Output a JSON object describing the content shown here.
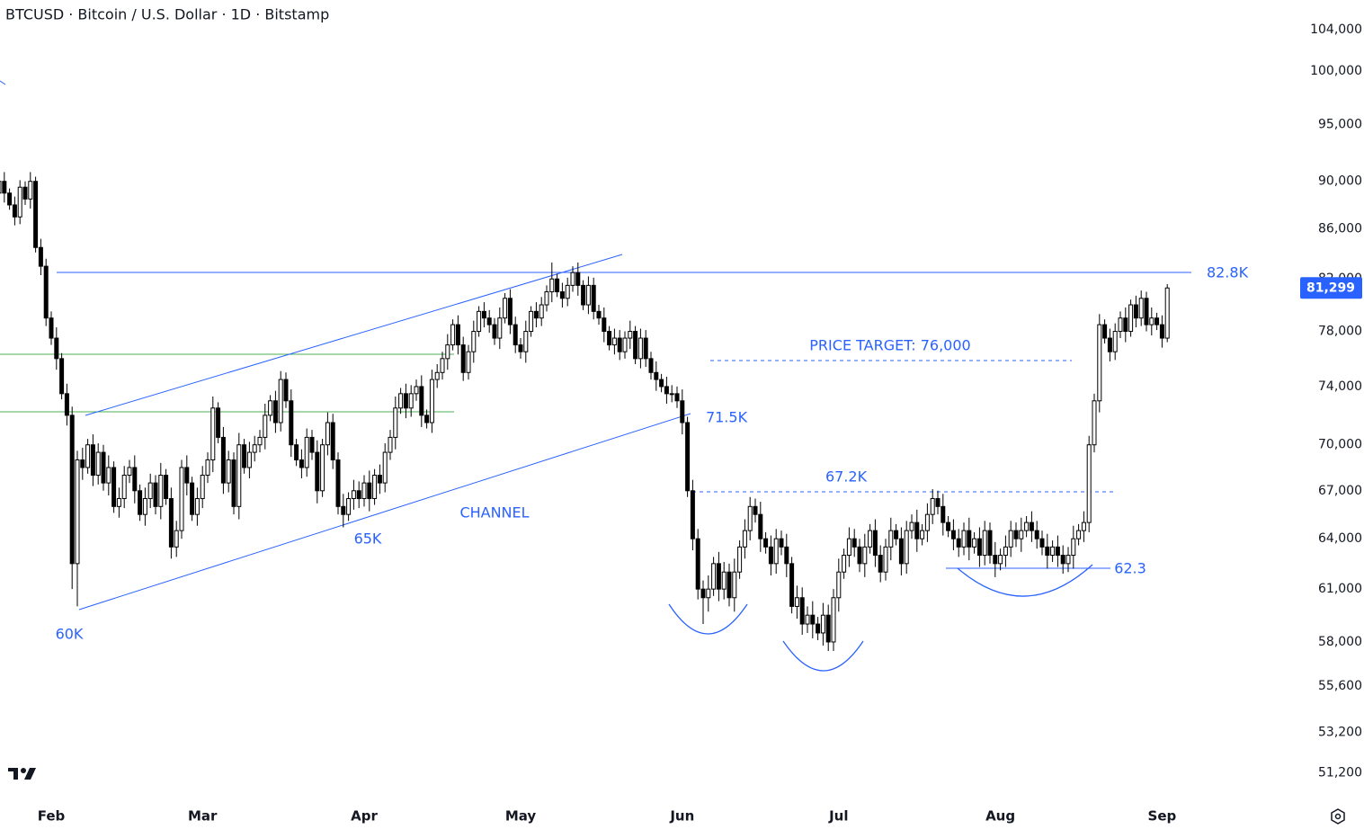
{
  "chart_data": {
    "type": "candlestick",
    "title": "BTCUSD · Bitcoin / U.S. Dollar · 1D · Bitstamp",
    "log_scale": true,
    "grid": false,
    "up_color": "#ffffff",
    "down_color": "#000000",
    "outline_color": "#000000",
    "ylim": [
      50000,
      107000
    ],
    "yticks": [
      {
        "value": 51200,
        "label": "51,200"
      },
      {
        "value": 53200,
        "label": "53,200"
      },
      {
        "value": 55600,
        "label": "55,600"
      },
      {
        "value": 58000,
        "label": "58,000"
      },
      {
        "value": 61000,
        "label": "61,000"
      },
      {
        "value": 64000,
        "label": "64,000"
      },
      {
        "value": 67000,
        "label": "67,000"
      },
      {
        "value": 70000,
        "label": "70,000"
      },
      {
        "value": 74000,
        "label": "74,000"
      },
      {
        "value": 78000,
        "label": "78,000"
      },
      {
        "value": 82000,
        "label": "82,000"
      },
      {
        "value": 86000,
        "label": "86,000"
      },
      {
        "value": 90000,
        "label": "90,000"
      },
      {
        "value": 95000,
        "label": "95,000"
      },
      {
        "value": 100000,
        "label": "100,000"
      },
      {
        "value": 104000,
        "label": "104,000"
      }
    ],
    "last_price": {
      "value": 81299,
      "label": "81,299",
      "color": "#2962ff"
    },
    "annotations": [
      "82.8K",
      "PRICE TARGET: 76,000",
      "71.5K",
      "67.2K",
      "CHANNEL",
      "65K",
      "60K",
      "62.3"
    ],
    "categories": [
      null,
      null,
      null,
      null,
      null,
      null,
      null,
      null,
      null,
      null,
      "Feb",
      null,
      null,
      null,
      null,
      null,
      null,
      null,
      null,
      null,
      null,
      null,
      null,
      null,
      null,
      null,
      null,
      null,
      null,
      null,
      null,
      null,
      null,
      null,
      null,
      null,
      null,
      null,
      null,
      "Mar",
      null,
      null,
      null,
      null,
      null,
      null,
      null,
      null,
      null,
      null,
      null,
      null,
      null,
      null,
      null,
      null,
      null,
      null,
      null,
      null,
      null,
      null,
      null,
      null,
      null,
      null,
      null,
      null,
      null,
      null,
      "Apr",
      null,
      null,
      null,
      null,
      null,
      null,
      null,
      null,
      null,
      null,
      null,
      null,
      null,
      null,
      null,
      null,
      null,
      null,
      null,
      null,
      null,
      null,
      null,
      null,
      null,
      null,
      null,
      null,
      null,
      "May",
      null,
      null,
      null,
      null,
      null,
      null,
      null,
      null,
      null,
      null,
      null,
      null,
      null,
      null,
      null,
      null,
      null,
      null,
      null,
      null,
      null,
      null,
      null,
      null,
      null,
      null,
      null,
      null,
      null,
      null,
      "Jun",
      null,
      null,
      null,
      null,
      null,
      null,
      null,
      null,
      null,
      null,
      null,
      null,
      null,
      null,
      null,
      null,
      null,
      null,
      null,
      null,
      null,
      null,
      null,
      null,
      null,
      null,
      null,
      null,
      null,
      "Jul",
      null,
      null,
      null,
      null,
      null,
      null,
      null,
      null,
      null,
      null,
      null,
      null,
      null,
      null,
      null,
      null,
      null,
      null,
      null,
      null,
      null,
      null,
      null,
      null,
      null,
      null,
      null,
      null,
      null,
      null,
      "Aug",
      null,
      null,
      null,
      null,
      null,
      null,
      null,
      null,
      null,
      null,
      null,
      null,
      null,
      null,
      null,
      null,
      null,
      null,
      null,
      null,
      null,
      null,
      null,
      null,
      null,
      null,
      null,
      null,
      null,
      null,
      "Sep",
      null
    ],
    "open": [
      89000,
      90000,
      89000,
      88000,
      87000,
      89500,
      88500,
      90000,
      84500,
      83000,
      79000,
      77500,
      76000,
      73500,
      72000,
      62500,
      69000,
      68500,
      70000,
      68000,
      69500,
      67500,
      68500,
      66000,
      66500,
      68000,
      68500,
      67000,
      65500,
      66500,
      67500,
      66000,
      68000,
      66500,
      63500,
      64500,
      68500,
      67500,
      65500,
      66500,
      68000,
      69000,
      72500,
      70500,
      67500,
      69000,
      66000,
      70000,
      68500,
      69500,
      70000,
      70500,
      72000,
      73000,
      71500,
      74500,
      73000,
      70000,
      69000,
      68500,
      70500,
      69500,
      67000,
      70000,
      71500,
      69000,
      66000,
      65500,
      66500,
      67000,
      66500,
      67500,
      66500,
      68000,
      67500,
      69500,
      70500,
      72500,
      73500,
      72500,
      73500,
      74000,
      72000,
      71500,
      74500,
      75000,
      76000,
      77000,
      78500,
      77000,
      75000,
      76500,
      78000,
      79500,
      79000,
      78500,
      77500,
      79000,
      80500,
      78500,
      77000,
      76500,
      78000,
      79500,
      79000,
      80000,
      81000,
      82000,
      81000,
      80500,
      81500,
      82500,
      81500,
      80000,
      81500,
      79500,
      79000,
      78000,
      77000,
      77500,
      76500,
      77500,
      78000,
      76000,
      77500,
      76000,
      75000,
      74500,
      74000,
      73500,
      73500,
      73000,
      71500,
      67000,
      64000,
      61000,
      60500,
      61000,
      62500,
      61000,
      62000,
      60500,
      62000,
      63500,
      64500,
      66000,
      65500,
      64000,
      63500,
      62500,
      64000,
      63500,
      62500,
      60000,
      60500,
      59000,
      59500,
      59000,
      58500,
      59500,
      58000,
      60500,
      62000,
      63000,
      64000,
      63500,
      62500,
      63500,
      64500,
      63000,
      62000,
      63500,
      64500,
      64000,
      62500,
      64500,
      65000,
      64000,
      64500,
      65500,
      66500,
      66000,
      65000,
      64500,
      64000,
      63500,
      64500,
      63500,
      64000,
      63000,
      64500,
      63000,
      62500,
      63000,
      63500,
      64500,
      64000,
      64500,
      65000,
      64500,
      64000,
      63500,
      63000,
      63500,
      63000,
      62500,
      63000,
      64000,
      64500,
      65000,
      70000,
      73000,
      78500,
      77500,
      76500,
      78000,
      79000,
      78000,
      80000,
      79000,
      80500,
      78500,
      79000,
      78500,
      77500
    ],
    "high": [
      90500,
      90800,
      89400,
      88700,
      90100,
      90000,
      90800,
      90400,
      85200,
      83600,
      79500,
      78300,
      76400,
      74200,
      72600,
      69600,
      69800,
      70400,
      70700,
      70100,
      70000,
      69300,
      68900,
      67200,
      68600,
      69000,
      69300,
      67400,
      67200,
      68100,
      68000,
      68800,
      68400,
      67200,
      65100,
      69000,
      69300,
      67900,
      67200,
      68600,
      69500,
      73300,
      72900,
      71200,
      69600,
      69500,
      70800,
      70400,
      70200,
      70600,
      71000,
      72800,
      73400,
      73700,
      75100,
      75000,
      73800,
      70400,
      69700,
      71100,
      71000,
      70300,
      70400,
      72200,
      72100,
      69500,
      66800,
      66900,
      67700,
      67600,
      68000,
      68300,
      68400,
      68700,
      70100,
      71000,
      73300,
      73900,
      74200,
      74100,
      74500,
      74800,
      72400,
      75200,
      75600,
      76500,
      77800,
      78900,
      79200,
      77600,
      77000,
      78800,
      79900,
      80200,
      79600,
      79000,
      79800,
      80900,
      81200,
      79100,
      77500,
      78800,
      79900,
      80200,
      80600,
      81500,
      83300,
      82400,
      81700,
      82100,
      83000,
      83300,
      81900,
      82200,
      82100,
      80000,
      79800,
      78400,
      78200,
      78100,
      78000,
      78800,
      78400,
      78200,
      78100,
      76500,
      75800,
      74900,
      74700,
      74100,
      74000,
      73800,
      71900,
      67700,
      64600,
      61500,
      61800,
      62900,
      63200,
      62600,
      62500,
      62800,
      63900,
      65200,
      66600,
      66500,
      66300,
      64400,
      64200,
      64600,
      64500,
      64300,
      62900,
      61200,
      61100,
      60000,
      60300,
      59400,
      60200,
      60100,
      61000,
      62800,
      63400,
      64700,
      64600,
      64000,
      64300,
      64900,
      65200,
      63600,
      64000,
      65300,
      64900,
      64700,
      65100,
      65500,
      65800,
      64900,
      66200,
      67100,
      67000,
      66800,
      65400,
      65200,
      64600,
      65000,
      65300,
      64400,
      64700,
      65100,
      65000,
      63800,
      63400,
      64200,
      65100,
      65000,
      65300,
      65400,
      65700,
      65100,
      64500,
      64300,
      63900,
      64200,
      63600,
      63500,
      64800,
      64900,
      65700,
      70600,
      73500,
      79300,
      78900,
      78200,
      78600,
      79500,
      79800,
      80400,
      80700,
      81100,
      81000,
      79800,
      79400,
      79200,
      81600
    ],
    "low": [
      88500,
      88200,
      87600,
      86300,
      86400,
      88000,
      87700,
      84100,
      82300,
      78400,
      77000,
      75200,
      73100,
      71300,
      61000,
      60000,
      67700,
      68100,
      67300,
      67400,
      67000,
      66700,
      65600,
      65300,
      65900,
      67500,
      66200,
      65100,
      64800,
      65900,
      65500,
      65200,
      66100,
      62800,
      62900,
      64000,
      66700,
      65100,
      64800,
      65900,
      67500,
      68200,
      70100,
      66800,
      66900,
      65500,
      65200,
      68100,
      67800,
      68900,
      69500,
      69700,
      71600,
      70800,
      70900,
      72500,
      69200,
      68600,
      67800,
      67900,
      69000,
      66200,
      66600,
      69300,
      68400,
      65500,
      64700,
      65100,
      65800,
      65900,
      66000,
      65700,
      66100,
      66800,
      66900,
      69000,
      69700,
      72100,
      71800,
      71900,
      73000,
      71200,
      71100,
      70800,
      73900,
      74500,
      75200,
      76600,
      76300,
      74400,
      74500,
      75700,
      77600,
      78300,
      77900,
      77000,
      76700,
      78600,
      77800,
      76400,
      76000,
      75700,
      77600,
      78300,
      78400,
      79500,
      80200,
      80600,
      79800,
      79900,
      81000,
      80700,
      79600,
      79300,
      78900,
      78500,
      77200,
      76600,
      76300,
      75900,
      76000,
      76700,
      75600,
      75300,
      75400,
      74500,
      73700,
      73600,
      72800,
      72900,
      72500,
      70700,
      66600,
      63300,
      60400,
      59000,
      59700,
      60600,
      60300,
      60400,
      60000,
      59700,
      61600,
      62800,
      63900,
      65000,
      63200,
      63100,
      61800,
      61900,
      63000,
      61700,
      59600,
      59300,
      58400,
      58500,
      58200,
      58100,
      57800,
      57500,
      57500,
      59700,
      61600,
      62300,
      62900,
      62000,
      61700,
      63100,
      62300,
      61400,
      61500,
      62700,
      63600,
      61800,
      61900,
      64000,
      63200,
      63600,
      63800,
      64900,
      65500,
      64200,
      64100,
      63300,
      62900,
      63000,
      62700,
      63100,
      62300,
      62400,
      62500,
      61700,
      62100,
      62300,
      62900,
      63500,
      63200,
      64100,
      63800,
      63400,
      63000,
      62200,
      62600,
      62300,
      61900,
      62000,
      62200,
      63600,
      63800,
      64400,
      69500,
      72200,
      77100,
      75800,
      75900,
      77500,
      77200,
      77600,
      78300,
      78400,
      78000,
      77700,
      78100,
      76800,
      77200
    ],
    "close": [
      90000,
      89000,
      88000,
      87000,
      89500,
      88500,
      90000,
      84500,
      83000,
      79000,
      77500,
      76000,
      73500,
      72000,
      62500,
      69000,
      68500,
      70000,
      68000,
      69500,
      67500,
      68500,
      66000,
      66500,
      68000,
      68500,
      67000,
      65500,
      66500,
      67500,
      66000,
      68000,
      66500,
      63500,
      64500,
      68500,
      67500,
      65500,
      66500,
      68000,
      69000,
      72500,
      70500,
      67500,
      69000,
      66000,
      70000,
      68500,
      69500,
      70000,
      70500,
      72000,
      73000,
      71500,
      74500,
      73000,
      70000,
      69000,
      68500,
      70500,
      69500,
      67000,
      70000,
      71500,
      69000,
      66000,
      65500,
      66500,
      67000,
      66500,
      67500,
      66500,
      68000,
      67500,
      69500,
      70500,
      72500,
      73500,
      72500,
      73500,
      74000,
      72000,
      71500,
      74500,
      75000,
      76000,
      77000,
      78500,
      77000,
      75000,
      76500,
      78000,
      79500,
      79000,
      78500,
      77500,
      79000,
      80500,
      78500,
      77000,
      76500,
      78000,
      79500,
      79000,
      80000,
      81000,
      82000,
      81000,
      80500,
      81500,
      82500,
      81500,
      80000,
      81500,
      79500,
      79000,
      78000,
      77000,
      77500,
      76500,
      77500,
      78000,
      76000,
      77500,
      76000,
      75000,
      74500,
      74000,
      73500,
      73500,
      73000,
      71500,
      67000,
      64000,
      61000,
      60500,
      61000,
      62500,
      61000,
      62000,
      60500,
      62000,
      63500,
      64500,
      66000,
      65500,
      64000,
      63500,
      62500,
      64000,
      63500,
      62500,
      60000,
      60500,
      59000,
      59500,
      59000,
      58500,
      59500,
      58000,
      60500,
      62000,
      63000,
      64000,
      63500,
      62500,
      63500,
      64500,
      63000,
      62000,
      63500,
      64500,
      64000,
      62500,
      64500,
      65000,
      64000,
      64500,
      65500,
      66500,
      66000,
      65000,
      64500,
      64000,
      63500,
      64500,
      63500,
      64000,
      63000,
      64500,
      63000,
      62500,
      63000,
      63500,
      64500,
      64000,
      64500,
      65000,
      64500,
      64000,
      63500,
      63000,
      63500,
      63000,
      62500,
      63000,
      64000,
      64500,
      65000,
      70000,
      73000,
      78500,
      77500,
      76500,
      78000,
      79000,
      78000,
      80000,
      79000,
      80500,
      78500,
      79000,
      78500,
      77500,
      81299
    ]
  }
}
